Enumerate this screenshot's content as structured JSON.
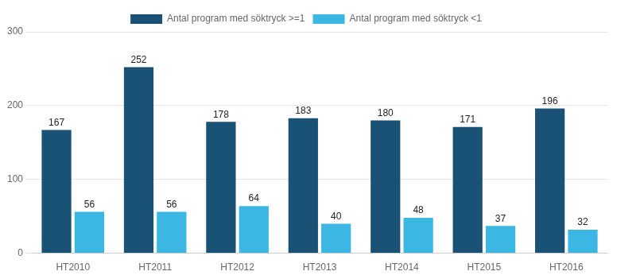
{
  "chart_data": {
    "type": "bar",
    "categories": [
      "HT2010",
      "HT2011",
      "HT2012",
      "HT2013",
      "HT2014",
      "HT2015",
      "HT2016"
    ],
    "series": [
      {
        "name": "Antal program med söktryck >=1",
        "color": "#1A5276",
        "values": [
          167,
          252,
          178,
          183,
          180,
          171,
          196
        ]
      },
      {
        "name": "Antal program med söktryck <1",
        "color": "#3CB6E3",
        "values": [
          56,
          56,
          64,
          40,
          48,
          37,
          32
        ]
      }
    ],
    "ylim": [
      0,
      300
    ],
    "yticks": [
      0,
      100,
      200,
      300
    ],
    "grid": true,
    "legend": "top",
    "data_labels": true
  }
}
